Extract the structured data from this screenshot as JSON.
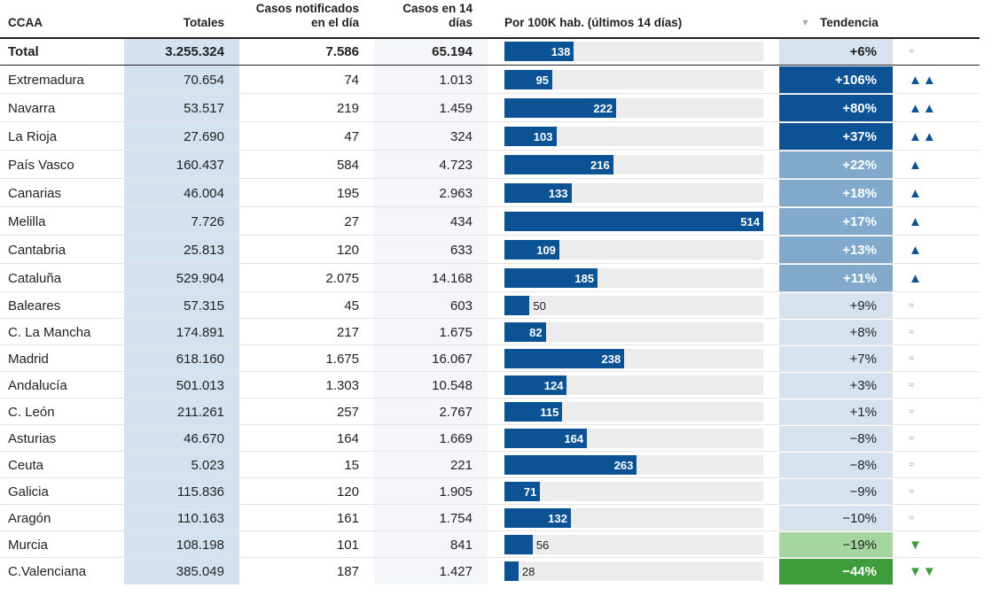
{
  "header": {
    "region": "CCAA",
    "total": "Totales",
    "daily": "Casos notificados en el día",
    "days14": "Casos en 14 días",
    "rate": "Por 100K hab. (últimos 14 días)",
    "trend": "Tendencia"
  },
  "total_row": {
    "region": "Total",
    "total": "3.255.324",
    "daily": "7.586",
    "days14": "65.194",
    "rate": 138,
    "trend": "+6%",
    "arrow": "≈",
    "color": "#d6e3ef"
  },
  "rows": [
    {
      "region": "Extremadura",
      "total": "70.654",
      "daily": "74",
      "days14": "1.013",
      "rate": 95,
      "trend": "+106%",
      "arrow": "▲▲",
      "color": "#0b5394"
    },
    {
      "region": "Navarra",
      "total": "53.517",
      "daily": "219",
      "days14": "1.459",
      "rate": 222,
      "trend": "+80%",
      "arrow": "▲▲",
      "color": "#0b5394"
    },
    {
      "region": "La Rioja",
      "total": "27.690",
      "daily": "47",
      "days14": "324",
      "rate": 103,
      "trend": "+37%",
      "arrow": "▲▲",
      "color": "#0b5394"
    },
    {
      "region": "País Vasco",
      "total": "160.437",
      "daily": "584",
      "days14": "4.723",
      "rate": 216,
      "trend": "+22%",
      "arrow": "▲",
      "color": "#80a9cc"
    },
    {
      "region": "Canarias",
      "total": "46.004",
      "daily": "195",
      "days14": "2.963",
      "rate": 133,
      "trend": "+18%",
      "arrow": "▲",
      "color": "#80a9cc"
    },
    {
      "region": "Melilla",
      "total": "7.726",
      "daily": "27",
      "days14": "434",
      "rate": 514,
      "trend": "+17%",
      "arrow": "▲",
      "color": "#80a9cc"
    },
    {
      "region": "Cantabria",
      "total": "25.813",
      "daily": "120",
      "days14": "633",
      "rate": 109,
      "trend": "+13%",
      "arrow": "▲",
      "color": "#80a9cc"
    },
    {
      "region": "Cataluña",
      "total": "529.904",
      "daily": "2.075",
      "days14": "14.168",
      "rate": 185,
      "trend": "+11%",
      "arrow": "▲",
      "color": "#80a9cc"
    },
    {
      "region": "Baleares",
      "total": "57.315",
      "daily": "45",
      "days14": "603",
      "rate": 50,
      "trend": "+9%",
      "arrow": "≈",
      "color": "#d6e3ef"
    },
    {
      "region": "C. La Mancha",
      "total": "174.891",
      "daily": "217",
      "days14": "1.675",
      "rate": 82,
      "trend": "+8%",
      "arrow": "≈",
      "color": "#d6e3ef"
    },
    {
      "region": "Madrid",
      "total": "618.160",
      "daily": "1.675",
      "days14": "16.067",
      "rate": 238,
      "trend": "+7%",
      "arrow": "≈",
      "color": "#d6e3ef"
    },
    {
      "region": "Andalucía",
      "total": "501.013",
      "daily": "1.303",
      "days14": "10.548",
      "rate": 124,
      "trend": "+3%",
      "arrow": "≈",
      "color": "#d6e3ef"
    },
    {
      "region": "C. León",
      "total": "211.261",
      "daily": "257",
      "days14": "2.767",
      "rate": 115,
      "trend": "+1%",
      "arrow": "≈",
      "color": "#d6e3ef"
    },
    {
      "region": "Asturias",
      "total": "46.670",
      "daily": "164",
      "days14": "1.669",
      "rate": 164,
      "trend": "−8%",
      "arrow": "≈",
      "color": "#d6e3ef"
    },
    {
      "region": "Ceuta",
      "total": "5.023",
      "daily": "15",
      "days14": "221",
      "rate": 263,
      "trend": "−8%",
      "arrow": "≈",
      "color": "#d6e3ef"
    },
    {
      "region": "Galicia",
      "total": "115.836",
      "daily": "120",
      "days14": "1.905",
      "rate": 71,
      "trend": "−9%",
      "arrow": "≈",
      "color": "#d6e3ef"
    },
    {
      "region": "Aragón",
      "total": "110.163",
      "daily": "161",
      "days14": "1.754",
      "rate": 132,
      "trend": "−10%",
      "arrow": "≈",
      "color": "#d6e3ef"
    },
    {
      "region": "Murcia",
      "total": "108.198",
      "daily": "101",
      "days14": "841",
      "rate": 56,
      "trend": "−19%",
      "arrow": "▼",
      "color": "#a5d6a0"
    },
    {
      "region": "C.Valenciana",
      "total": "385.049",
      "daily": "187",
      "days14": "1.427",
      "rate": 28,
      "trend": "−44%",
      "arrow": "▼▼",
      "color": "#3d9d3a"
    }
  ]
}
